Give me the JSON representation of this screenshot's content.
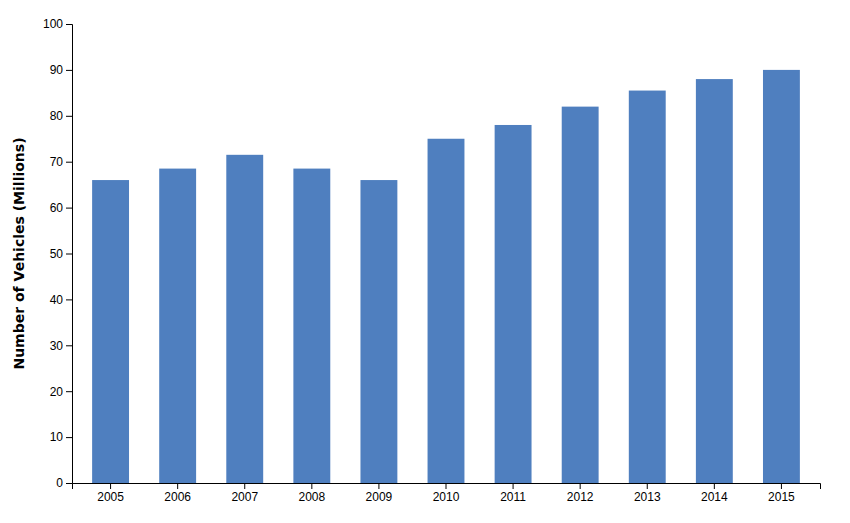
{
  "chart_data": {
    "type": "bar",
    "categories": [
      "2005",
      "2006",
      "2007",
      "2008",
      "2009",
      "2010",
      "2011",
      "2012",
      "2013",
      "2014",
      "2015"
    ],
    "values": [
      66,
      68.5,
      71.5,
      68.5,
      66,
      75,
      78,
      82,
      85.5,
      88,
      90
    ],
    "color": "#4f7fbf",
    "ylabel": "Number of Vehicles (Millions)",
    "ylim": [
      0,
      100
    ],
    "yticks": [
      0,
      10,
      20,
      30,
      40,
      50,
      60,
      70,
      80,
      90,
      100
    ],
    "grid": false
  }
}
